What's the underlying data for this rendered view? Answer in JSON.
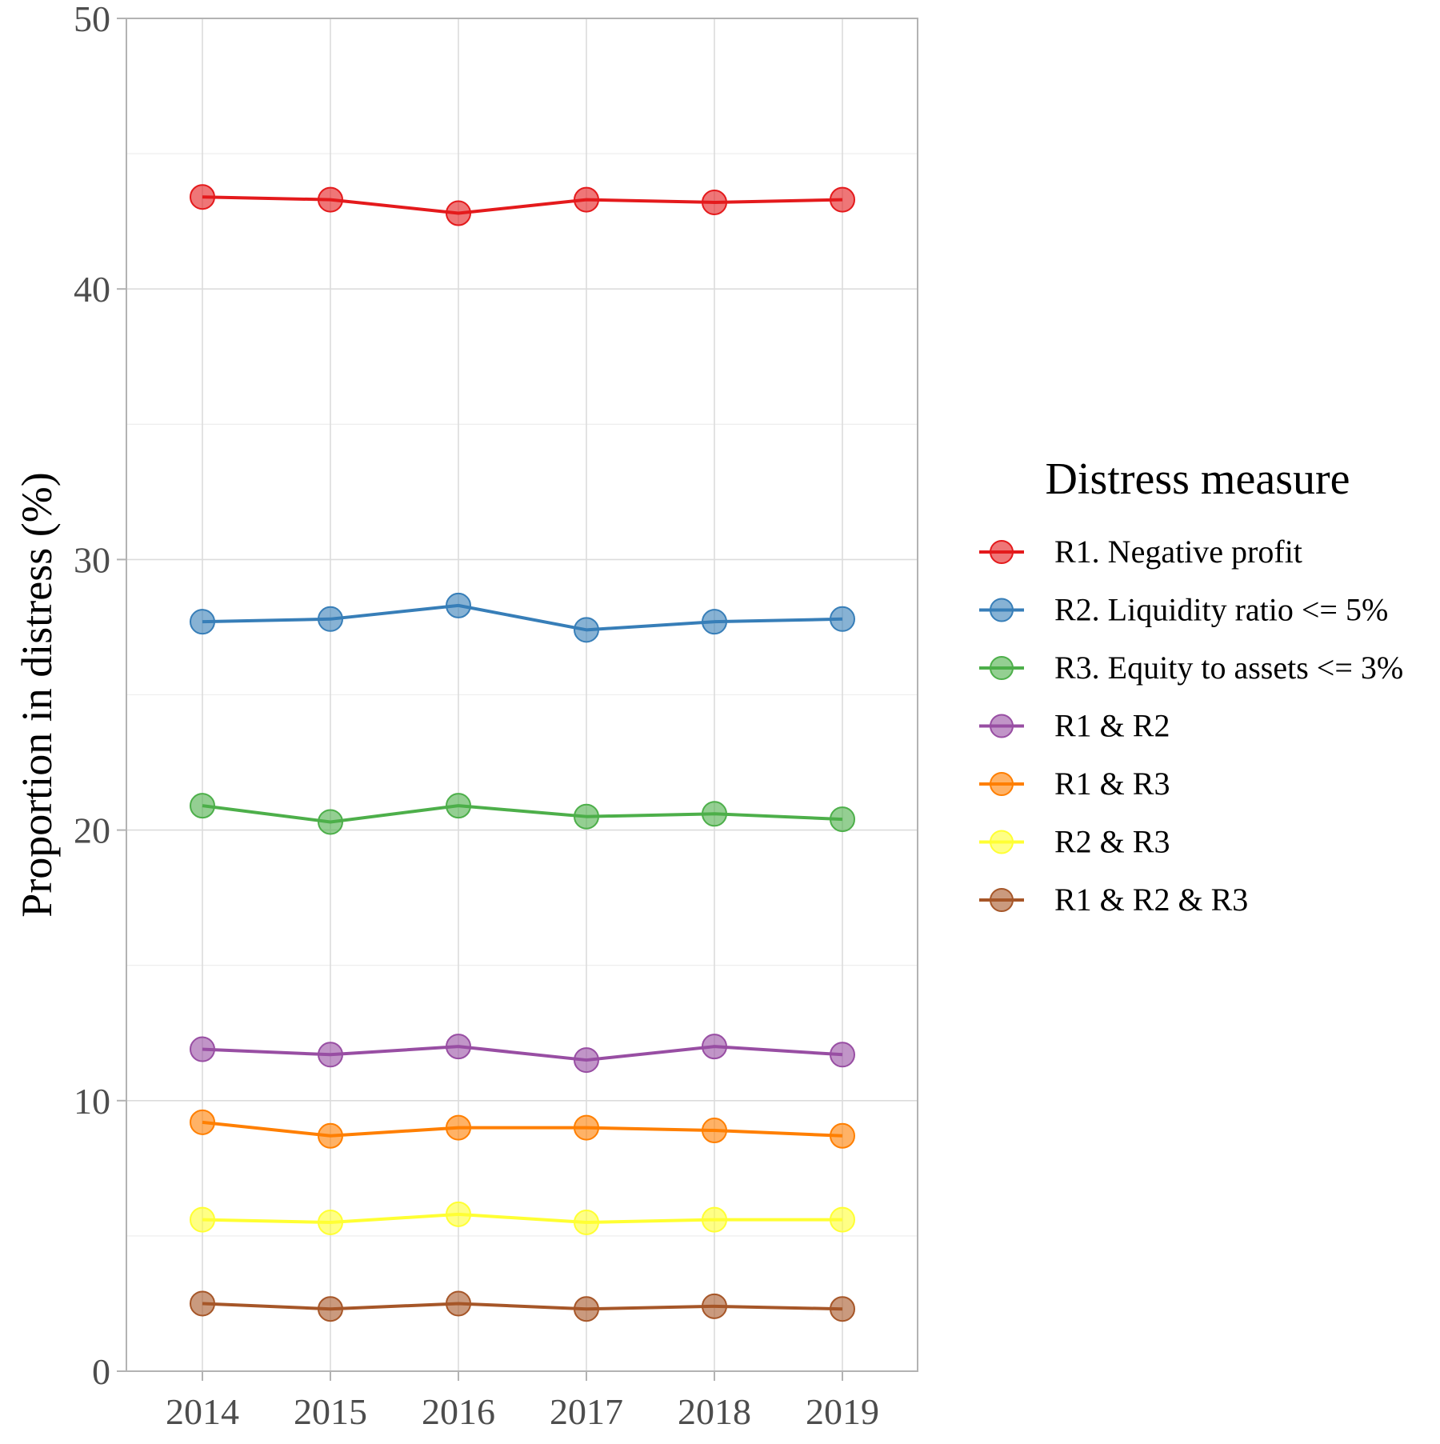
{
  "chart_data": {
    "type": "line",
    "title": "",
    "xlabel": "",
    "ylabel": "Proportion in distress (%)",
    "x": [
      "2014",
      "2015",
      "2016",
      "2017",
      "2018",
      "2019"
    ],
    "ylim": [
      0,
      50
    ],
    "yticks": [
      0,
      10,
      20,
      30,
      40,
      50
    ],
    "grid": true,
    "legend": {
      "title": "Distress measure",
      "position": "right"
    },
    "series": [
      {
        "name": "R1. Negative profit",
        "color": "#e41a1c",
        "values": [
          43.4,
          43.3,
          42.8,
          43.3,
          43.2,
          43.3
        ]
      },
      {
        "name": "R2. Liquidity ratio <= 5%",
        "color": "#377eb8",
        "values": [
          27.7,
          27.8,
          28.3,
          27.4,
          27.7,
          27.8
        ]
      },
      {
        "name": "R3. Equity to assets <= 3%",
        "color": "#4daf4a",
        "values": [
          20.9,
          20.3,
          20.9,
          20.5,
          20.6,
          20.4
        ]
      },
      {
        "name": "R1 & R2",
        "color": "#984ea3",
        "values": [
          11.9,
          11.7,
          12.0,
          11.5,
          12.0,
          11.7
        ]
      },
      {
        "name": "R1 & R3",
        "color": "#ff7f00",
        "values": [
          9.2,
          8.7,
          9.0,
          9.0,
          8.9,
          8.7
        ]
      },
      {
        "name": "R2 & R3",
        "color": "#ffff33",
        "values": [
          5.6,
          5.5,
          5.8,
          5.5,
          5.6,
          5.6
        ]
      },
      {
        "name": "R1 & R2 & R3",
        "color": "#a65628",
        "values": [
          2.5,
          2.3,
          2.5,
          2.3,
          2.4,
          2.3
        ]
      }
    ]
  }
}
